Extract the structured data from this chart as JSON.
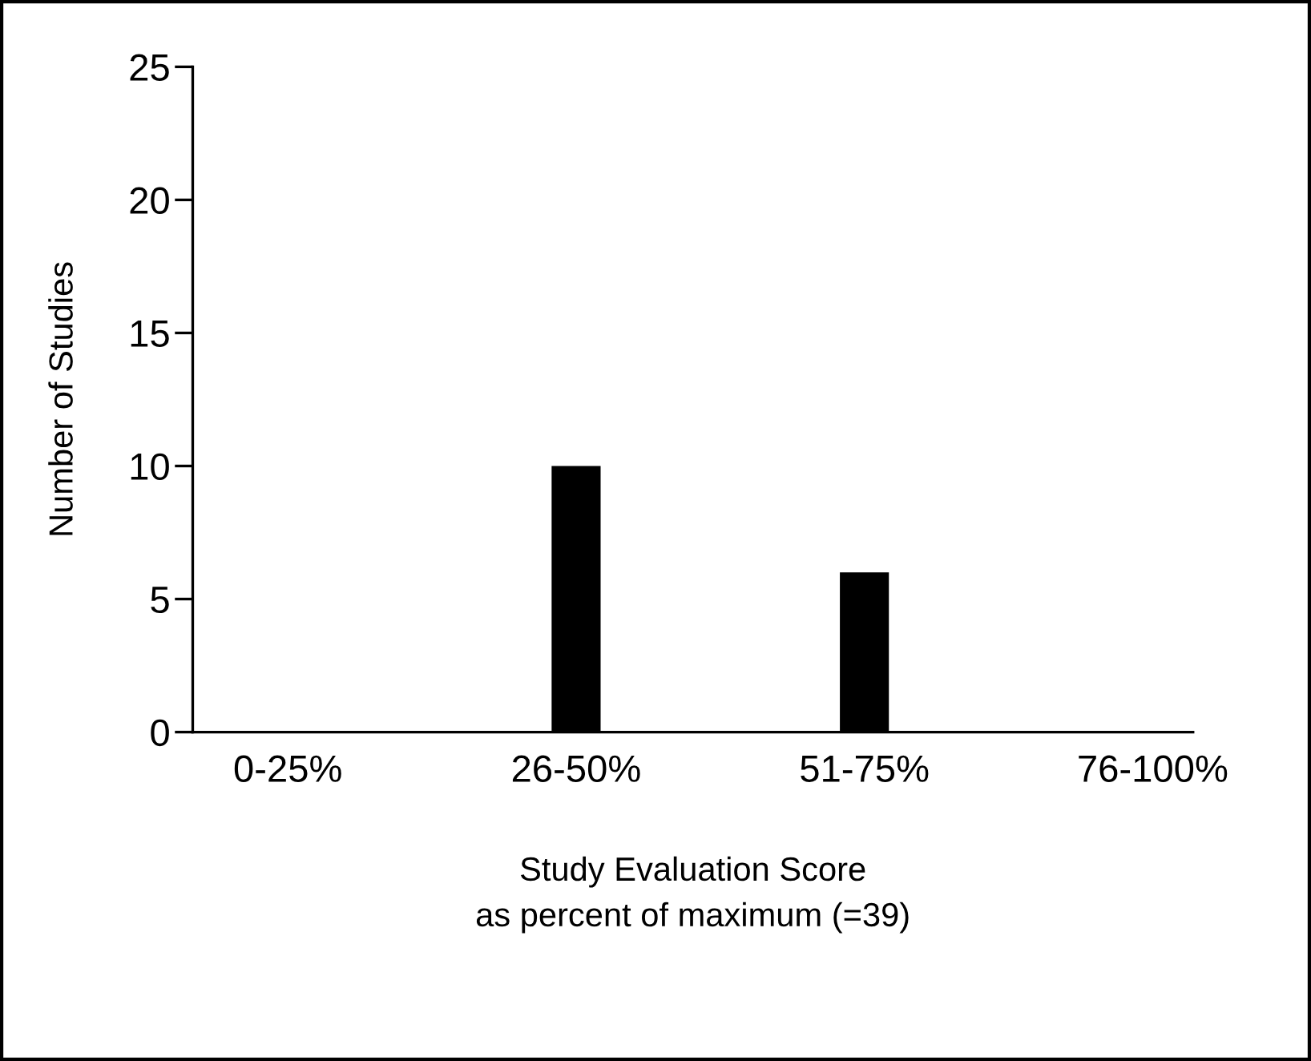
{
  "chart_data": {
    "type": "bar",
    "xlabel": "Study Evaluation Score\nas percent of maximum (=39)",
    "ylabel": "Number of Studies",
    "categories": [
      "0-25%",
      "26-50%",
      "51-75%",
      "76-100%"
    ],
    "values": [
      0,
      10,
      6,
      0
    ],
    "color": "#000000",
    "ylim": [
      0,
      25
    ],
    "yticks": [
      0,
      5,
      10,
      15,
      20,
      25
    ],
    "grid": false
  }
}
